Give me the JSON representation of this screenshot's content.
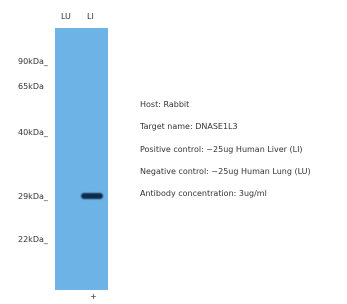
{
  "lanes": [
    "LU",
    "LI"
  ],
  "markers": [
    "90kDa_",
    "65kDa",
    "40kDa_",
    "29kDa_",
    "22kDa_"
  ],
  "lane_marks": [
    "",
    "+"
  ],
  "info": [
    "Host: Rabbit",
    "Target name: DNASE1L3",
    "Positive control: ~25ug Human Liver (LI)",
    "Negative control: ~25ug Human Lung (LU)",
    "Antibody concentration: 3ug/ml"
  ]
}
